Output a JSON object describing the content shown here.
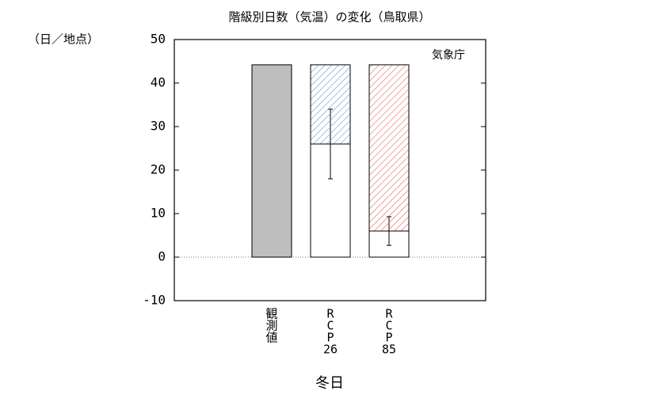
{
  "chart_data": {
    "type": "bar",
    "title": "階級別日数（気温）の変化（鳥取県）",
    "y_unit": "（日／地点）",
    "source": "気象庁",
    "x_label": "冬日",
    "categories": [
      [
        "観",
        "測",
        "値"
      ],
      [
        "R",
        "C",
        "P",
        "26"
      ],
      [
        "R",
        "C",
        "P",
        "85"
      ]
    ],
    "series": [
      {
        "color": "#bebebe",
        "values": [
          44.2,
          null,
          null
        ]
      },
      {
        "color": "#ffffff",
        "values": [
          null,
          26,
          6
        ],
        "errors": [
          null,
          8,
          3.3
        ]
      },
      {
        "pattern": "hatch",
        "colors": [
          null,
          "#5aa0cc",
          "#e06858"
        ],
        "values": [
          null,
          18.2,
          38.2
        ]
      }
    ],
    "ylim": [
      -10,
      50
    ],
    "yticks": [
      -10,
      0,
      10,
      20,
      30,
      40,
      50
    ]
  }
}
